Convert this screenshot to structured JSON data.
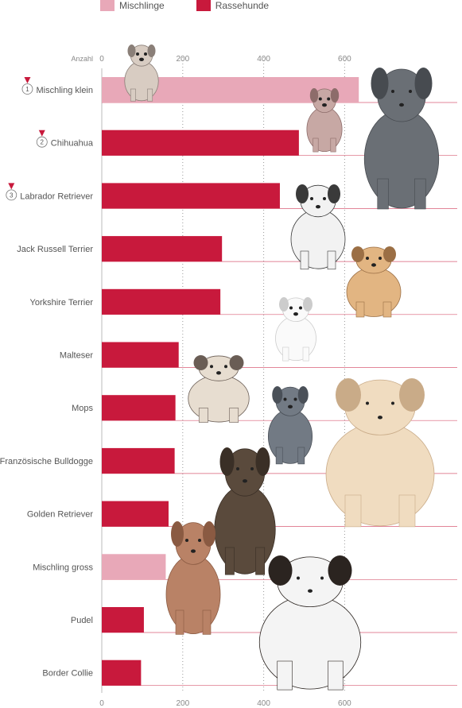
{
  "legend": [
    {
      "name": "Mischlinge",
      "color": "#e8a8b8"
    },
    {
      "name": "Rassehunde",
      "color": "#c8193c"
    }
  ],
  "chart_data": {
    "type": "bar",
    "orientation": "horizontal",
    "axis_label": "Anzahl",
    "xlim": [
      0,
      650
    ],
    "ticks": [
      "0",
      "200",
      "400",
      "600"
    ],
    "tick_values": [
      0,
      200,
      400,
      600
    ],
    "grid": "dotted vertical",
    "legend_position": "top",
    "categories": [
      "Mischling klein",
      "Chihuahua",
      "Labrador Retriever",
      "Jack Russell Terrier",
      "Yorkshire Terrier",
      "Malteser",
      "Mops",
      "Französische Bulldogge",
      "Golden Retriever",
      "Mischling gross",
      "Pudel",
      "Border Collie"
    ],
    "values": [
      635,
      487,
      440,
      297,
      293,
      190,
      182,
      180,
      165,
      158,
      104,
      97
    ],
    "groups": [
      "Mischlinge",
      "Rassehunde",
      "Rassehunde",
      "Rassehunde",
      "Rassehunde",
      "Rassehunde",
      "Rassehunde",
      "Rassehunde",
      "Rassehunde",
      "Mischlinge",
      "Rassehunde",
      "Rassehunde"
    ],
    "ranks": [
      "1",
      "2",
      "3"
    ]
  },
  "icons": {
    "medal": "medal-icon",
    "dogs": "dog-illustration-icon"
  }
}
